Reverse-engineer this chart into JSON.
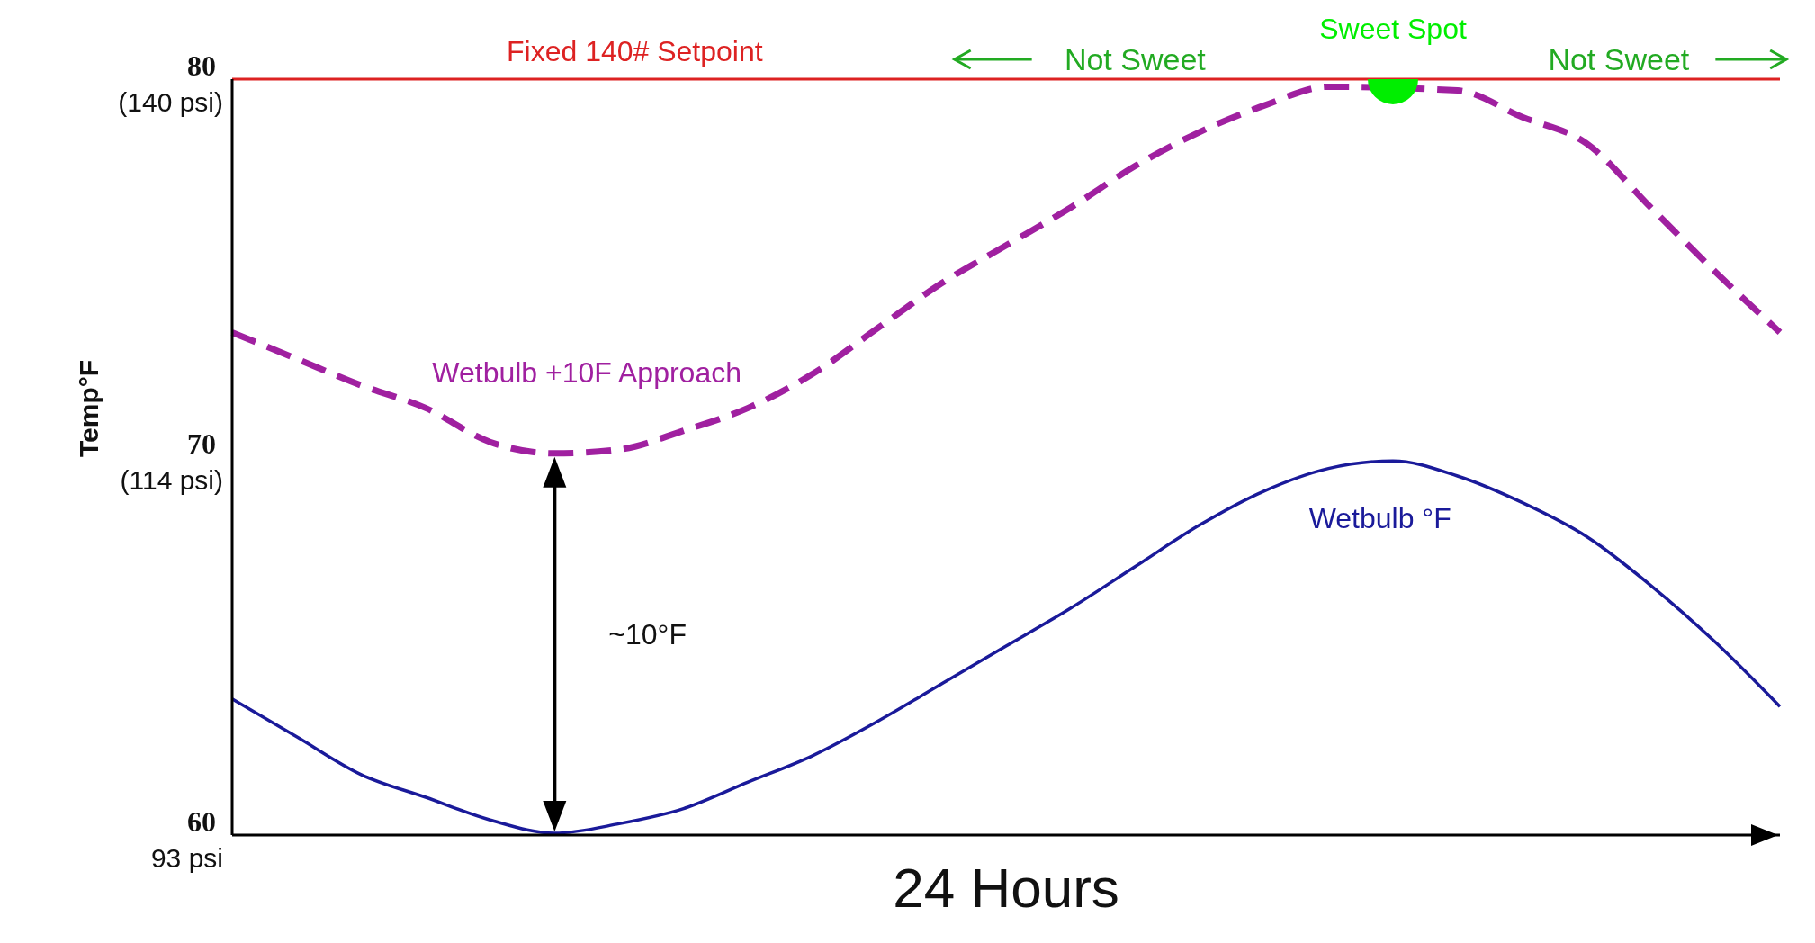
{
  "chart_data": {
    "type": "line",
    "xlabel": "24 Hours",
    "ylabel": "Temp°F",
    "categories": [
      null,
      null,
      null,
      null,
      null,
      null,
      null,
      null,
      null,
      null,
      null,
      null,
      null,
      null,
      null,
      null,
      null,
      null,
      null,
      null,
      null,
      null,
      null,
      null,
      null
    ],
    "ylim": [
      60,
      80
    ],
    "yticks": [
      60,
      70,
      80
    ],
    "series": [
      {
        "name": "Wetbulb +10F Approach",
        "color": "#a020a0",
        "line_style": "dashed",
        "values": [
          73.3,
          72.6,
          71.9,
          71.3,
          70.4,
          70.1,
          70.2,
          70.7,
          71.3,
          72.2,
          73.4,
          74.6,
          75.6,
          76.6,
          77.7,
          78.6,
          79.3,
          79.8,
          null,
          79.7,
          79.0,
          78.3,
          76.6,
          74.9,
          73.3
        ]
      },
      {
        "name": "Wetbulb °F",
        "color": "#1a1a9a",
        "line_style": "solid",
        "values": [
          63.6,
          62.6,
          61.6,
          61.0,
          60.4,
          60.05,
          60.3,
          60.7,
          61.4,
          62.1,
          63.0,
          64.0,
          65.0,
          66.0,
          67.1,
          68.2,
          69.1,
          69.7,
          69.9,
          69.5,
          68.8,
          67.9,
          66.6,
          65.1,
          63.4
        ]
      },
      {
        "name": "Sweet Spot",
        "type": "scatter",
        "marker": "circle",
        "color": "#00ee00",
        "values": [
          null,
          null,
          null,
          null,
          null,
          null,
          null,
          null,
          null,
          null,
          null,
          null,
          null,
          null,
          null,
          null,
          null,
          null,
          80,
          null,
          null,
          null,
          null,
          null,
          null
        ]
      }
    ],
    "ref_lines": [
      {
        "axis": "y",
        "value": 80,
        "label": "Fixed 140# Setpoint",
        "color": "#dd2222"
      }
    ],
    "annotations": [
      "Not Sweet",
      "Not Sweet",
      "~10°F",
      "(140 psi)",
      "(114 psi)",
      "93 psi"
    ],
    "grid": false,
    "legend": false
  }
}
